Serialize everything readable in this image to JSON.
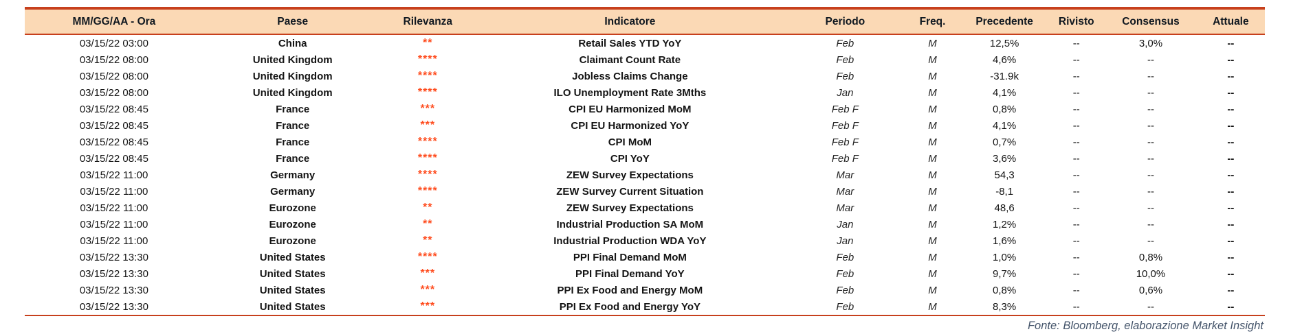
{
  "chart_data": {
    "type": "table",
    "columns": [
      {
        "key": "datetime",
        "label": "MM/GG/AA - Ora"
      },
      {
        "key": "country",
        "label": "Paese"
      },
      {
        "key": "relevance",
        "label": "Rilevanza"
      },
      {
        "key": "indicator",
        "label": "Indicatore"
      },
      {
        "key": "period",
        "label": "Periodo"
      },
      {
        "key": "freq",
        "label": "Freq."
      },
      {
        "key": "previous",
        "label": "Precedente"
      },
      {
        "key": "revised",
        "label": "Rivisto"
      },
      {
        "key": "consensus",
        "label": "Consensus"
      },
      {
        "key": "actual",
        "label": "Attuale"
      }
    ],
    "rows": [
      {
        "datetime": "03/15/22 03:00",
        "country": "China",
        "relevance": "**",
        "indicator": "Retail Sales YTD YoY",
        "period": "Feb",
        "freq": "M",
        "previous": "12,5%",
        "revised": "--",
        "consensus": "3,0%",
        "actual": "--"
      },
      {
        "datetime": "03/15/22 08:00",
        "country": "United Kingdom",
        "relevance": "****",
        "indicator": "Claimant Count Rate",
        "period": "Feb",
        "freq": "M",
        "previous": "4,6%",
        "revised": "--",
        "consensus": "--",
        "actual": "--"
      },
      {
        "datetime": "03/15/22 08:00",
        "country": "United Kingdom",
        "relevance": "****",
        "indicator": "Jobless Claims Change",
        "period": "Feb",
        "freq": "M",
        "previous": "-31.9k",
        "revised": "--",
        "consensus": "--",
        "actual": "--"
      },
      {
        "datetime": "03/15/22 08:00",
        "country": "United Kingdom",
        "relevance": "****",
        "indicator": "ILO Unemployment Rate 3Mths",
        "period": "Jan",
        "freq": "M",
        "previous": "4,1%",
        "revised": "--",
        "consensus": "--",
        "actual": "--"
      },
      {
        "datetime": "03/15/22 08:45",
        "country": "France",
        "relevance": "***",
        "indicator": "CPI EU Harmonized MoM",
        "period": "Feb F",
        "freq": "M",
        "previous": "0,8%",
        "revised": "--",
        "consensus": "--",
        "actual": "--"
      },
      {
        "datetime": "03/15/22 08:45",
        "country": "France",
        "relevance": "***",
        "indicator": "CPI EU Harmonized YoY",
        "period": "Feb F",
        "freq": "M",
        "previous": "4,1%",
        "revised": "--",
        "consensus": "--",
        "actual": "--"
      },
      {
        "datetime": "03/15/22 08:45",
        "country": "France",
        "relevance": "****",
        "indicator": "CPI MoM",
        "period": "Feb F",
        "freq": "M",
        "previous": "0,7%",
        "revised": "--",
        "consensus": "--",
        "actual": "--"
      },
      {
        "datetime": "03/15/22 08:45",
        "country": "France",
        "relevance": "****",
        "indicator": "CPI YoY",
        "period": "Feb F",
        "freq": "M",
        "previous": "3,6%",
        "revised": "--",
        "consensus": "--",
        "actual": "--"
      },
      {
        "datetime": "03/15/22 11:00",
        "country": "Germany",
        "relevance": "****",
        "indicator": "ZEW Survey Expectations",
        "period": "Mar",
        "freq": "M",
        "previous": "54,3",
        "revised": "--",
        "consensus": "--",
        "actual": "--"
      },
      {
        "datetime": "03/15/22 11:00",
        "country": "Germany",
        "relevance": "****",
        "indicator": "ZEW Survey Current Situation",
        "period": "Mar",
        "freq": "M",
        "previous": "-8,1",
        "revised": "--",
        "consensus": "--",
        "actual": "--"
      },
      {
        "datetime": "03/15/22 11:00",
        "country": "Eurozone",
        "relevance": "**",
        "indicator": "ZEW Survey Expectations",
        "period": "Mar",
        "freq": "M",
        "previous": "48,6",
        "revised": "--",
        "consensus": "--",
        "actual": "--"
      },
      {
        "datetime": "03/15/22 11:00",
        "country": "Eurozone",
        "relevance": "**",
        "indicator": "Industrial Production SA MoM",
        "period": "Jan",
        "freq": "M",
        "previous": "1,2%",
        "revised": "--",
        "consensus": "--",
        "actual": "--"
      },
      {
        "datetime": "03/15/22 11:00",
        "country": "Eurozone",
        "relevance": "**",
        "indicator": "Industrial Production WDA YoY",
        "period": "Jan",
        "freq": "M",
        "previous": "1,6%",
        "revised": "--",
        "consensus": "--",
        "actual": "--"
      },
      {
        "datetime": "03/15/22 13:30",
        "country": "United States",
        "relevance": "****",
        "indicator": "PPI Final Demand MoM",
        "period": "Feb",
        "freq": "M",
        "previous": "1,0%",
        "revised": "--",
        "consensus": "0,8%",
        "actual": "--"
      },
      {
        "datetime": "03/15/22 13:30",
        "country": "United States",
        "relevance": "***",
        "indicator": "PPI Final Demand YoY",
        "period": "Feb",
        "freq": "M",
        "previous": "9,7%",
        "revised": "--",
        "consensus": "10,0%",
        "actual": "--"
      },
      {
        "datetime": "03/15/22 13:30",
        "country": "United States",
        "relevance": "***",
        "indicator": "PPI Ex Food and Energy MoM",
        "period": "Feb",
        "freq": "M",
        "previous": "0,8%",
        "revised": "--",
        "consensus": "0,6%",
        "actual": "--"
      },
      {
        "datetime": "03/15/22 13:30",
        "country": "United States",
        "relevance": "***",
        "indicator": "PPI Ex Food and Energy YoY",
        "period": "Feb",
        "freq": "M",
        "previous": "8,3%",
        "revised": "--",
        "consensus": "--",
        "actual": "--"
      }
    ]
  },
  "footer": {
    "source": "Fonte: Bloomberg, elaborazione Market Insight"
  },
  "colors": {
    "accent": "#C7401D",
    "header_bg": "#FBD9B5",
    "relevance": "#FF4C1E",
    "footer_text": "#44546A"
  }
}
